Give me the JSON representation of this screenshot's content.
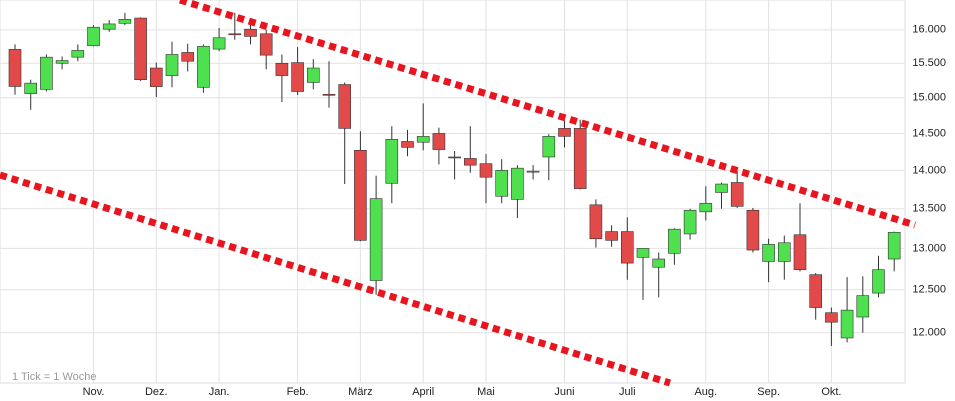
{
  "chart_data": {
    "type": "candlestick",
    "annotation": "1 Tick = 1 Woche",
    "categories": [
      null,
      null,
      null,
      null,
      null,
      "Nov.",
      null,
      null,
      null,
      "Dez.",
      null,
      null,
      null,
      "Jan.",
      null,
      null,
      null,
      null,
      "Feb.",
      null,
      null,
      null,
      "März",
      null,
      null,
      null,
      "April",
      null,
      null,
      null,
      "Mai",
      null,
      null,
      null,
      null,
      "Juni",
      null,
      null,
      null,
      "Juli",
      null,
      null,
      null,
      null,
      "Aug.",
      null,
      null,
      null,
      "Sep.",
      null,
      null,
      null,
      "Okt.",
      null,
      null,
      null,
      null
    ],
    "open": [
      15706,
      15060,
      15120,
      15500,
      15590,
      15760,
      16010,
      16100,
      16180,
      15430,
      15320,
      15660,
      15150,
      15710,
      15940,
      16010,
      15940,
      15500,
      15510,
      15220,
      15050,
      15190,
      14270,
      12610,
      13830,
      14390,
      14380,
      14500,
      14180,
      14160,
      14090,
      13660,
      13620,
      13980,
      14180,
      14570,
      14570,
      13550,
      13210,
      13210,
      12890,
      12770,
      12940,
      13180,
      13460,
      13710,
      13840,
      13480,
      12840,
      12840,
      13170,
      12680,
      12230,
      11940,
      12180,
      12460,
      12870
    ],
    "high": [
      15780,
      15260,
      15630,
      15600,
      15780,
      16070,
      16150,
      16260,
      16190,
      15510,
      15820,
      15790,
      15780,
      16030,
      16260,
      16120,
      16000,
      15630,
      15740,
      15560,
      15530,
      15220,
      14530,
      13930,
      14600,
      14550,
      14920,
      14580,
      14260,
      14600,
      14220,
      14150,
      14070,
      14070,
      14490,
      14680,
      14690,
      13620,
      13290,
      13390,
      13000,
      12950,
      13250,
      13500,
      13790,
      13840,
      13990,
      13510,
      13120,
      13160,
      13570,
      12700,
      12290,
      12650,
      12660,
      12910,
      13210
    ],
    "low": [
      15044,
      14830,
      15090,
      15410,
      15530,
      15750,
      15970,
      16070,
      15240,
      15010,
      15150,
      15380,
      15070,
      15680,
      15850,
      15780,
      15410,
      14940,
      15040,
      15120,
      14860,
      13820,
      13090,
      12440,
      13570,
      14190,
      14270,
      14080,
      13880,
      13970,
      13570,
      13570,
      13380,
      13880,
      13870,
      14310,
      13750,
      13010,
      13020,
      12620,
      12380,
      12410,
      12800,
      13110,
      13350,
      13500,
      13510,
      12950,
      12590,
      12620,
      12720,
      12150,
      11850,
      11890,
      12000,
      12410,
      12720
    ],
    "close": [
      15162,
      15210,
      15590,
      15540,
      15690,
      16040,
      16090,
      16160,
      15260,
      15160,
      15630,
      15530,
      15750,
      15880,
      15930,
      15900,
      15620,
      15320,
      15090,
      15430,
      15040,
      14570,
      13100,
      13630,
      14420,
      14310,
      14460,
      14280,
      14170,
      14070,
      13910,
      14000,
      14030,
      13990,
      14460,
      14460,
      13760,
      13120,
      13100,
      12820,
      13000,
      12870,
      13240,
      13480,
      13570,
      13820,
      13530,
      12980,
      13050,
      13070,
      12740,
      12290,
      12120,
      12260,
      12430,
      12740,
      13200
    ],
    "up_color": "#4ee04e",
    "down_color": "#e24a4a",
    "log_scale": true,
    "grid": true,
    "ylim": [
      11440,
      16460
    ],
    "yticks": [
      {
        "value": 12000,
        "label": "12.000"
      },
      {
        "value": 12500,
        "label": "12.500"
      },
      {
        "value": 13000,
        "label": "13.000"
      },
      {
        "value": 13500,
        "label": "13.500"
      },
      {
        "value": 14000,
        "label": "14.000"
      },
      {
        "value": 14500,
        "label": "14.500"
      },
      {
        "value": 15000,
        "label": "15.000"
      },
      {
        "value": 15500,
        "label": "15.500"
      },
      {
        "value": 16000,
        "label": "16.000"
      }
    ]
  }
}
